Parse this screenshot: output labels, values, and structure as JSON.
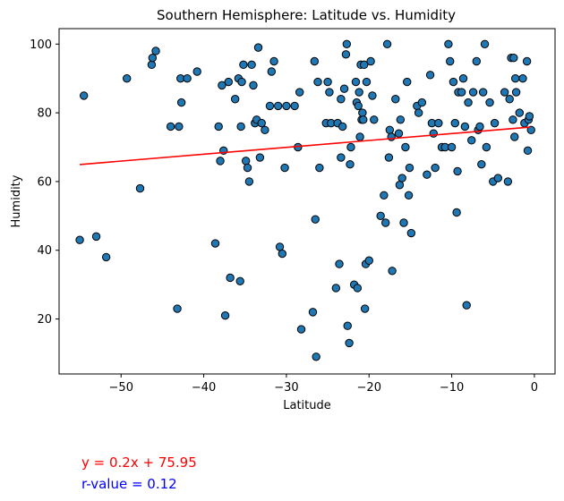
{
  "chart_data": {
    "type": "scatter",
    "title": "Southern Hemisphere: Latitude vs. Humidity",
    "xlabel": "Latitude",
    "ylabel": "Humidity",
    "xlim": [
      -57.5,
      2.5
    ],
    "ylim": [
      4,
      104.5
    ],
    "xticks": [
      -50,
      -40,
      -30,
      -20,
      -10,
      0
    ],
    "yticks": [
      20,
      40,
      60,
      80,
      100
    ],
    "grid": false,
    "point_color": "#1f77b4",
    "point_edge_color": "#000000",
    "regression": {
      "slope": 0.2,
      "intercept": 75.95,
      "x_range": [
        -55,
        -0.5
      ],
      "color": "#ff0000"
    },
    "annotations": {
      "equation": "y = 0.2x + 75.95",
      "equation_color": "#ff0000",
      "r_value": "r-value = 0.12",
      "r_value_color": "#0000ff"
    },
    "points": [
      [
        -55,
        43
      ],
      [
        -54.5,
        85
      ],
      [
        -53,
        44
      ],
      [
        -51.8,
        38
      ],
      [
        -49.3,
        90
      ],
      [
        -47.7,
        58
      ],
      [
        -46.3,
        94
      ],
      [
        -46.2,
        96
      ],
      [
        -45.8,
        98
      ],
      [
        -44,
        76
      ],
      [
        -43.2,
        23
      ],
      [
        -43,
        76
      ],
      [
        -42.8,
        90
      ],
      [
        -42.7,
        83
      ],
      [
        -42,
        90
      ],
      [
        -40.8,
        92
      ],
      [
        -38.6,
        42
      ],
      [
        -38.2,
        76
      ],
      [
        -38,
        66
      ],
      [
        -37.8,
        88
      ],
      [
        -37.6,
        69
      ],
      [
        -37.4,
        21
      ],
      [
        -37,
        89
      ],
      [
        -36.8,
        32
      ],
      [
        -36.2,
        84
      ],
      [
        -35.8,
        90
      ],
      [
        -35.6,
        31
      ],
      [
        -35.5,
        76
      ],
      [
        -35.4,
        89
      ],
      [
        -35.2,
        94
      ],
      [
        -34.9,
        66
      ],
      [
        -34.7,
        64
      ],
      [
        -34.5,
        60
      ],
      [
        -34.2,
        94
      ],
      [
        -34,
        88
      ],
      [
        -33.8,
        77
      ],
      [
        -33.6,
        78
      ],
      [
        -33.4,
        99
      ],
      [
        -33.2,
        67
      ],
      [
        -33,
        77
      ],
      [
        -32.6,
        75
      ],
      [
        -32,
        82
      ],
      [
        -31.8,
        92
      ],
      [
        -31.5,
        95
      ],
      [
        -31,
        82
      ],
      [
        -30.8,
        41
      ],
      [
        -30.5,
        39
      ],
      [
        -30.2,
        64
      ],
      [
        -30,
        82
      ],
      [
        -29,
        82
      ],
      [
        -28.6,
        70
      ],
      [
        -28.4,
        86
      ],
      [
        -28.2,
        17
      ],
      [
        -26.8,
        22
      ],
      [
        -26.6,
        95
      ],
      [
        -26.5,
        49
      ],
      [
        -26.4,
        9
      ],
      [
        -26.2,
        89
      ],
      [
        -26,
        64
      ],
      [
        -25.2,
        77
      ],
      [
        -25,
        89
      ],
      [
        -24.8,
        86
      ],
      [
        -24.6,
        77
      ],
      [
        -24,
        29
      ],
      [
        -23.8,
        77
      ],
      [
        -23.6,
        36
      ],
      [
        -23.4,
        84
      ],
      [
        -23.4,
        67
      ],
      [
        -23.2,
        76
      ],
      [
        -23,
        87
      ],
      [
        -22.8,
        97
      ],
      [
        -22.7,
        100
      ],
      [
        -22.6,
        18
      ],
      [
        -22.4,
        13
      ],
      [
        -22.3,
        65
      ],
      [
        -22.2,
        70
      ],
      [
        -21.8,
        30
      ],
      [
        -21.6,
        89
      ],
      [
        -21.5,
        83
      ],
      [
        -21.4,
        29
      ],
      [
        -21.3,
        82
      ],
      [
        -21.2,
        86
      ],
      [
        -21.1,
        73
      ],
      [
        -21,
        94
      ],
      [
        -20.9,
        78
      ],
      [
        -20.8,
        80
      ],
      [
        -20.7,
        78
      ],
      [
        -20.6,
        94
      ],
      [
        -20.5,
        23
      ],
      [
        -20.4,
        36
      ],
      [
        -20.3,
        89
      ],
      [
        -20,
        37
      ],
      [
        -19.8,
        95
      ],
      [
        -19.6,
        85
      ],
      [
        -19.4,
        78
      ],
      [
        -18.6,
        50
      ],
      [
        -18.2,
        56
      ],
      [
        -18,
        48
      ],
      [
        -17.8,
        100
      ],
      [
        -17.6,
        67
      ],
      [
        -17.5,
        75
      ],
      [
        -17.3,
        73
      ],
      [
        -17.2,
        34
      ],
      [
        -16.8,
        84
      ],
      [
        -16.4,
        74
      ],
      [
        -16.3,
        59
      ],
      [
        -16.2,
        78
      ],
      [
        -16,
        61
      ],
      [
        -15.8,
        48
      ],
      [
        -15.6,
        70
      ],
      [
        -15.4,
        89
      ],
      [
        -15.2,
        56
      ],
      [
        -15.1,
        64
      ],
      [
        -14.9,
        45
      ],
      [
        -14.2,
        82
      ],
      [
        -14,
        80
      ],
      [
        -13.6,
        83
      ],
      [
        -13,
        62
      ],
      [
        -12.6,
        91
      ],
      [
        -12.4,
        77
      ],
      [
        -12.2,
        74
      ],
      [
        -12,
        64
      ],
      [
        -11.6,
        77
      ],
      [
        -11.2,
        70
      ],
      [
        -10.8,
        70
      ],
      [
        -10.4,
        100
      ],
      [
        -10.2,
        95
      ],
      [
        -10,
        70
      ],
      [
        -9.8,
        89
      ],
      [
        -9.6,
        77
      ],
      [
        -9.4,
        51
      ],
      [
        -9.3,
        63
      ],
      [
        -9.2,
        86
      ],
      [
        -8.8,
        86
      ],
      [
        -8.6,
        90
      ],
      [
        -8.4,
        76
      ],
      [
        -8.2,
        24
      ],
      [
        -8,
        83
      ],
      [
        -7.6,
        72
      ],
      [
        -7.4,
        86
      ],
      [
        -7,
        95
      ],
      [
        -6.8,
        75
      ],
      [
        -6.6,
        76
      ],
      [
        -6.4,
        65
      ],
      [
        -6.2,
        86
      ],
      [
        -6,
        100
      ],
      [
        -5.8,
        70
      ],
      [
        -5.4,
        83
      ],
      [
        -5,
        60
      ],
      [
        -4.8,
        77
      ],
      [
        -4.4,
        61
      ],
      [
        -3.6,
        86
      ],
      [
        -3.2,
        60
      ],
      [
        -3,
        84
      ],
      [
        -2.8,
        96
      ],
      [
        -2.6,
        78
      ],
      [
        -2.5,
        96
      ],
      [
        -2.4,
        73
      ],
      [
        -2.3,
        90
      ],
      [
        -2.2,
        86
      ],
      [
        -1.8,
        80
      ],
      [
        -1.4,
        90
      ],
      [
        -1.2,
        77
      ],
      [
        -0.9,
        95
      ],
      [
        -0.8,
        69
      ],
      [
        -0.7,
        78
      ],
      [
        -0.6,
        79
      ],
      [
        -0.4,
        75
      ]
    ]
  }
}
